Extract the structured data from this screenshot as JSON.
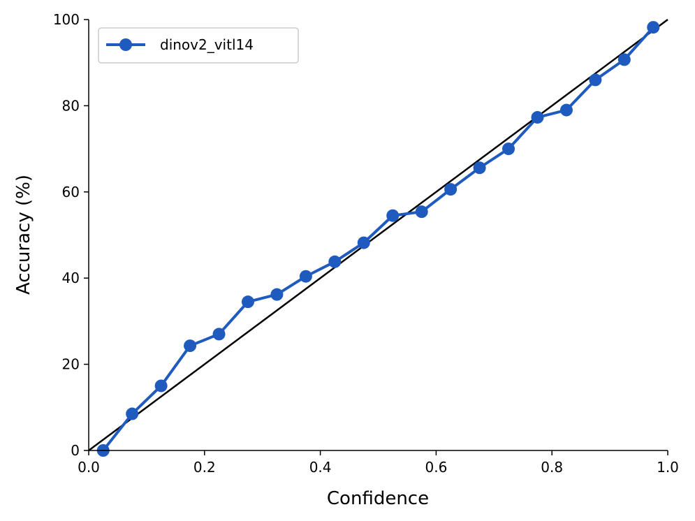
{
  "chart_data": {
    "type": "line",
    "xlabel": "Confidence",
    "ylabel": "Accuracy (%)",
    "xlim": [
      0.0,
      1.0
    ],
    "ylim": [
      0,
      100
    ],
    "xticks": [
      "0.0",
      "0.2",
      "0.4",
      "0.6",
      "0.8",
      "1.0"
    ],
    "yticks": [
      "0",
      "20",
      "40",
      "60",
      "80",
      "100"
    ],
    "grid": false,
    "legend_position": "top-left",
    "reference_line": {
      "x": [
        0,
        1
      ],
      "y": [
        0,
        100
      ],
      "color": "#000000"
    },
    "series": [
      {
        "name": "dinov2_vitl14",
        "color": "#1f5bbf",
        "marker": "circle",
        "x": [
          0.025,
          0.075,
          0.125,
          0.175,
          0.225,
          0.275,
          0.325,
          0.375,
          0.425,
          0.475,
          0.525,
          0.575,
          0.625,
          0.675,
          0.725,
          0.775,
          0.825,
          0.875,
          0.925,
          0.975
        ],
        "y": [
          0,
          8.5,
          15,
          24.3,
          27,
          34.5,
          36.2,
          40.4,
          43.8,
          48.2,
          54.5,
          55.4,
          60.6,
          65.6,
          70,
          77.3,
          79,
          86,
          90.7,
          98.2
        ]
      }
    ]
  }
}
